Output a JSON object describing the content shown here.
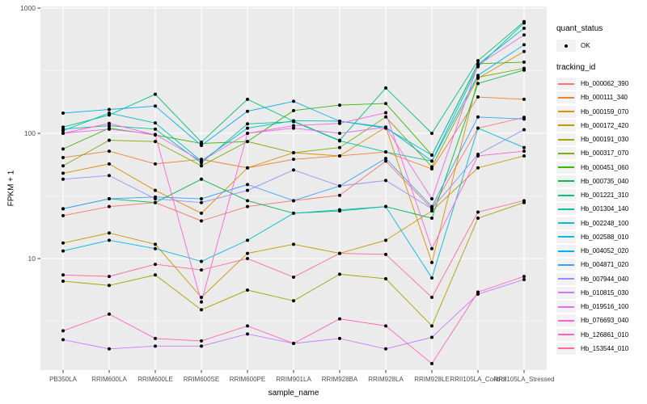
{
  "figure": {
    "ylabel": "FPKM + 1",
    "xlabel": "sample_name",
    "legend": {
      "quant_title": "quant_status",
      "quant_items": [
        {
          "label": "OK"
        }
      ],
      "tracking_title": "tracking_id"
    }
  },
  "chart_data": {
    "type": "line",
    "title": "",
    "xlabel": "sample_name",
    "ylabel": "FPKM + 1",
    "y_scale": "log10",
    "y_ticks": [
      10,
      100,
      1000
    ],
    "y_tick_labels": [
      "10",
      "100",
      "1000"
    ],
    "y_minor_ticks": [
      3.162,
      31.62,
      316.2
    ],
    "ylim": [
      1.3,
      1100
    ],
    "grid": true,
    "legend_position": "right",
    "panel_bg": "#EBEBEB",
    "gridline_color": "#FFFFFF",
    "tick_label_color": "#4D4D4D",
    "point_color": "#000000",
    "point_shape": "circle",
    "quant_status_legend": {
      "title": "quant_status",
      "entries": [
        "OK"
      ]
    },
    "series_legend_title": "tracking_id",
    "categories": [
      "PB350LA",
      "RRIM600LA",
      "RRIM600LE",
      "RRIM600SE",
      "RRIM600PE",
      "RRIM901LA",
      "RRIM928BA",
      "RRIM928LA",
      "RRIM928LE",
      "RRII105LA_Control",
      "RRII105LA_Stressed"
    ],
    "series": [
      {
        "name": "Hb_000062_390",
        "color": "#F8766D",
        "values": [
          22,
          26,
          28,
          20,
          26,
          29,
          32,
          60,
          25,
          110,
          134
        ]
      },
      {
        "name": "Hb_000111_340",
        "color": "#EA8331",
        "values": [
          64,
          72,
          57,
          62,
          53,
          62,
          66,
          71,
          52,
          195,
          187
        ]
      },
      {
        "name": "Hb_000159_070",
        "color": "#D89000",
        "values": [
          48,
          57,
          35,
          23,
          53,
          70,
          66,
          112,
          9.3,
          275,
          450
        ]
      },
      {
        "name": "Hb_000172_420",
        "color": "#C09B00",
        "values": [
          13.3,
          16,
          13,
          4.9,
          11,
          13,
          11,
          14,
          24,
          53,
          66
        ]
      },
      {
        "name": "Hb_000191_030",
        "color": "#A3A500",
        "values": [
          6.6,
          6.1,
          7.4,
          3.9,
          5.6,
          4.6,
          7.5,
          6.9,
          2.9,
          21,
          28
        ]
      },
      {
        "name": "Hb_000317_070",
        "color": "#7CAE00",
        "values": [
          55,
          88,
          86,
          55,
          86,
          70,
          77,
          135,
          54,
          280,
          330
        ]
      },
      {
        "name": "Hb_000451_060",
        "color": "#39B600",
        "values": [
          75,
          110,
          97,
          83,
          86,
          152,
          168,
          173,
          67,
          360,
          370
        ]
      },
      {
        "name": "Hb_000735_040",
        "color": "#00BB4E",
        "values": [
          25,
          30,
          28,
          43,
          29,
          23,
          24,
          26,
          21,
          250,
          320
        ]
      },
      {
        "name": "Hb_001221_310",
        "color": "#00BF7D",
        "values": [
          112,
          140,
          205,
          85,
          187,
          125,
          88,
          230,
          100,
          380,
          780
        ]
      },
      {
        "name": "Hb_001304_140",
        "color": "#00C1A3",
        "values": [
          108,
          115,
          108,
          58,
          119,
          124,
          87,
          71,
          60,
          340,
          760
        ]
      },
      {
        "name": "Hb_002248_100",
        "color": "#00BFC4",
        "values": [
          105,
          145,
          121,
          60,
          110,
          126,
          125,
          110,
          67,
          355,
          690
        ]
      },
      {
        "name": "Hb_002588_010",
        "color": "#00BAE0",
        "values": [
          11.5,
          14,
          12,
          9.5,
          14,
          23,
          24.5,
          26,
          7,
          110,
          77
        ]
      },
      {
        "name": "Hb_004052_020",
        "color": "#00B0F6",
        "values": [
          145,
          155,
          165,
          80,
          150,
          180,
          125,
          112,
          60,
          290,
          510
        ]
      },
      {
        "name": "Hb_004871_020",
        "color": "#35A2FF",
        "values": [
          25,
          30,
          31,
          30,
          39,
          29,
          38,
          63,
          26,
          135,
          130
        ]
      },
      {
        "name": "Hb_007944_040",
        "color": "#9590FF",
        "values": [
          43,
          46,
          30,
          28,
          35,
          51,
          38,
          42,
          25,
          68,
          107
        ]
      },
      {
        "name": "Hb_010815_030",
        "color": "#C77CFF",
        "values": [
          2.25,
          1.9,
          2.0,
          2.0,
          2.5,
          2.1,
          2.3,
          1.9,
          2.35,
          5.2,
          6.8
        ]
      },
      {
        "name": "Hb_019516_100",
        "color": "#E76BF3",
        "values": [
          100,
          108,
          98,
          60,
          100,
          110,
          100,
          112,
          30,
          350,
          610
        ]
      },
      {
        "name": "Hb_076693_040",
        "color": "#FA62DB",
        "values": [
          100,
          120,
          97,
          4.5,
          100,
          115,
          120,
          146,
          12,
          66,
          72
        ]
      },
      {
        "name": "Hb_126861_010",
        "color": "#FF62BC",
        "values": [
          2.65,
          3.6,
          2.3,
          2.2,
          2.9,
          2.1,
          3.3,
          2.9,
          1.45,
          5.4,
          7.2
        ]
      },
      {
        "name": "Hb_153544_010",
        "color": "#FF6A98",
        "values": [
          7.4,
          7.2,
          9.0,
          8.1,
          10,
          7.1,
          11,
          10.8,
          4.9,
          23.5,
          29
        ]
      }
    ]
  }
}
